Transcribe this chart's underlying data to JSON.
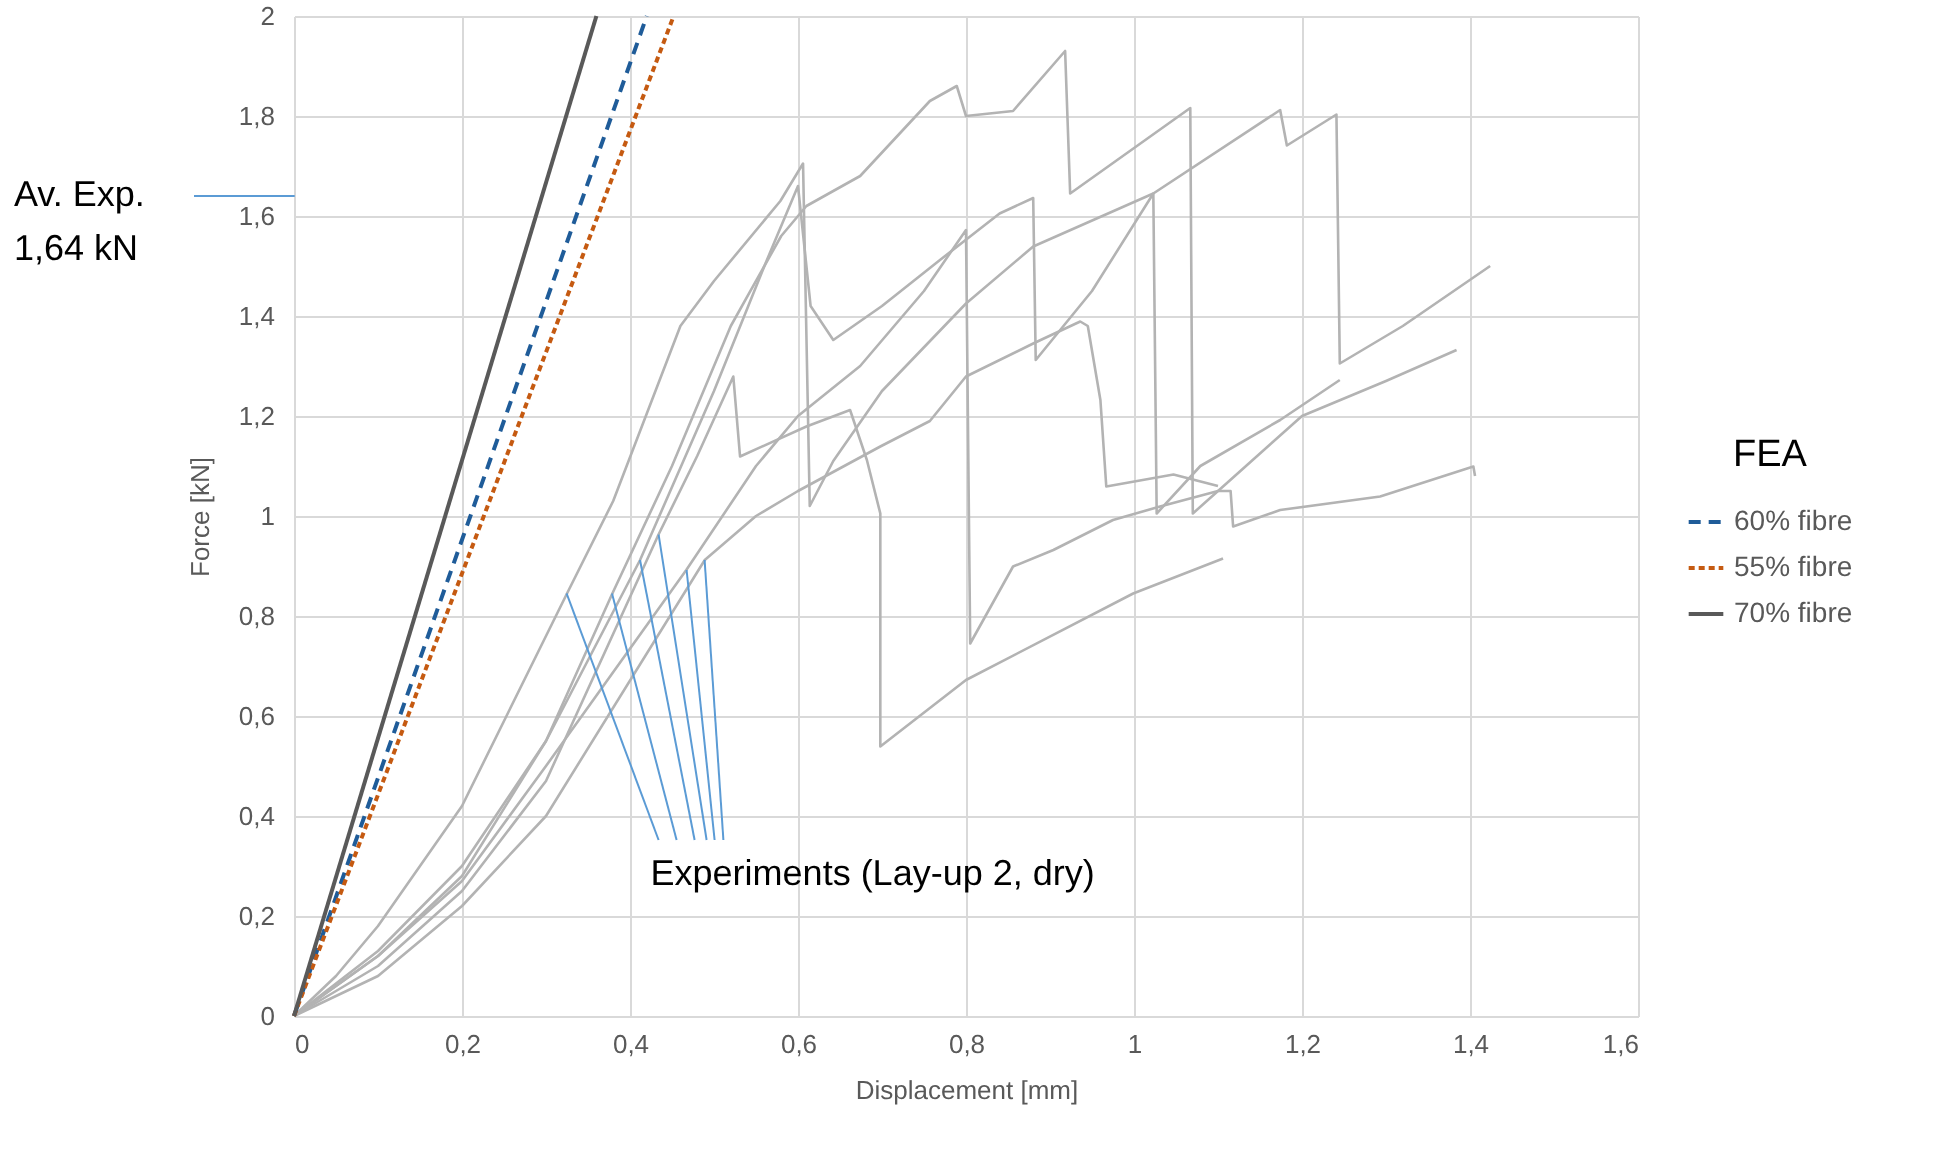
{
  "chart_data": {
    "type": "line",
    "xlabel": "Displacement [mm]",
    "ylabel": "Force [kN]",
    "legend_title": "FEA",
    "legend": "right",
    "grid": true,
    "xlim": [
      0,
      1.6
    ],
    "xticks": [
      0,
      {
        "value": 0.2,
        "label": "0,2"
      },
      {
        "value": 0.4,
        "label": "0,4"
      },
      {
        "value": 0.6,
        "label": "0,6"
      },
      {
        "value": 0.8,
        "label": "0,8"
      },
      1,
      {
        "value": 1.2,
        "label": "1,2"
      },
      {
        "value": 1.4,
        "label": "1,4"
      },
      {
        "value": 1.6,
        "label": "1,6"
      }
    ],
    "ylim": [
      0,
      2
    ],
    "yticks": [
      0,
      {
        "value": 0.2,
        "label": "0,2"
      },
      {
        "value": 0.4,
        "label": "0,4"
      },
      {
        "value": 0.6,
        "label": "0,6"
      },
      {
        "value": 0.8,
        "label": "0,8"
      },
      1,
      {
        "value": 1.2,
        "label": "1,2"
      },
      {
        "value": 1.4,
        "label": "1,4"
      },
      {
        "value": 1.6,
        "label": "1,6"
      },
      {
        "value": 1.8,
        "label": "1,8"
      },
      2
    ],
    "series": [
      {
        "color": "#b3b3b3",
        "line_style": "solid",
        "x": [
          0,
          0.05,
          0.1,
          0.2,
          0.325,
          0.38,
          0.46,
          0.5,
          0.579,
          0.606,
          0.614,
          0.642,
          0.7,
          0.8,
          0.88,
          1.023,
          1.174,
          1.182,
          1.241,
          1.245,
          1.32,
          1.424
        ],
        "values": [
          0,
          0.08,
          0.18,
          0.42,
          0.845,
          1.03,
          1.38,
          1.47,
          1.63,
          1.705,
          1.02,
          1.11,
          1.25,
          1.425,
          1.539,
          1.645,
          1.812,
          1.741,
          1.803,
          1.305,
          1.38,
          1.5
        ]
      },
      {
        "color": "#b3b3b3",
        "line_style": "solid",
        "x": [
          0,
          0.1,
          0.2,
          0.3,
          0.379,
          0.45,
          0.52,
          0.58,
          0.61,
          0.674,
          0.757,
          0.789,
          0.8,
          0.856,
          0.918,
          0.924,
          1.067,
          1.07,
          1.12,
          1.2,
          1.3,
          1.384
        ],
        "values": [
          0,
          0.13,
          0.3,
          0.55,
          0.845,
          1.1,
          1.38,
          1.56,
          1.62,
          1.68,
          1.83,
          1.86,
          1.8,
          1.81,
          1.93,
          1.645,
          1.816,
          1.005,
          1.08,
          1.2,
          1.27,
          1.332
        ]
      },
      {
        "color": "#b3b3b3",
        "line_style": "solid",
        "x": [
          0,
          0.1,
          0.2,
          0.3,
          0.412,
          0.5,
          0.56,
          0.6,
          0.615,
          0.642,
          0.7,
          0.769,
          0.84,
          0.88,
          0.883,
          0.95,
          1.023,
          1.027,
          1.079,
          1.174,
          1.245
        ],
        "values": [
          0,
          0.12,
          0.28,
          0.55,
          0.912,
          1.25,
          1.5,
          1.66,
          1.42,
          1.352,
          1.42,
          1.512,
          1.605,
          1.636,
          1.312,
          1.45,
          1.645,
          1.005,
          1.1,
          1.192,
          1.272
        ]
      },
      {
        "color": "#b3b3b3",
        "line_style": "solid",
        "x": [
          0,
          0.1,
          0.2,
          0.3,
          0.467,
          0.55,
          0.6,
          0.674,
          0.75,
          0.8,
          0.805,
          0.856,
          0.904,
          0.975,
          1.031,
          1.1,
          1.115,
          1.118,
          1.174,
          1.293,
          1.404,
          1.406
        ],
        "values": [
          0,
          0.12,
          0.27,
          0.5,
          0.892,
          1.1,
          1.2,
          1.3,
          1.45,
          1.572,
          0.745,
          0.899,
          0.932,
          0.992,
          1.019,
          1.05,
          1.05,
          0.979,
          1.012,
          1.039,
          1.099,
          1.08
        ]
      },
      {
        "color": "#b3b3b3",
        "line_style": "solid",
        "x": [
          0,
          0.1,
          0.2,
          0.3,
          0.434,
          0.48,
          0.523,
          0.531,
          0.61,
          0.662,
          0.682,
          0.698,
          0.698,
          0.8,
          0.999,
          1.106
        ],
        "values": [
          0,
          0.1,
          0.25,
          0.47,
          0.963,
          1.12,
          1.279,
          1.119,
          1.179,
          1.212,
          1.112,
          1.005,
          0.539,
          0.672,
          0.845,
          0.915
        ]
      },
      {
        "color": "#b3b3b3",
        "line_style": "solid",
        "x": [
          0,
          0.1,
          0.2,
          0.3,
          0.489,
          0.55,
          0.6,
          0.698,
          0.757,
          0.8,
          0.88,
          0.936,
          0.945,
          0.96,
          0.967,
          1.047,
          1.1
        ],
        "values": [
          0,
          0.08,
          0.22,
          0.4,
          0.912,
          1.0,
          1.05,
          1.139,
          1.19,
          1.279,
          1.345,
          1.389,
          1.38,
          1.232,
          1.059,
          1.083,
          1.06
        ]
      },
      {
        "name": "60% fibre",
        "color": "#1f5c99",
        "line_style": "dashed",
        "x": [
          0,
          0.42
        ],
        "values": [
          0,
          2
        ]
      },
      {
        "name": "55% fibre",
        "color": "#c55a11",
        "line_style": "dotted",
        "x": [
          0,
          0.452
        ],
        "values": [
          0,
          2
        ]
      },
      {
        "name": "70% fibre",
        "color": "#595959",
        "line_style": "solid",
        "x": [
          0,
          0.36
        ],
        "values": [
          0,
          2
        ]
      }
    ],
    "ref_lines": [
      {
        "axis": "y",
        "value": 1.64,
        "label": "Av. Exp. 1,64 kN",
        "color": "#5b9bd5"
      }
    ],
    "annotations": [
      {
        "text": "Experiments (Lay-up 2, dry)",
        "x": 0.434,
        "y": 0.963
      }
    ]
  }
}
